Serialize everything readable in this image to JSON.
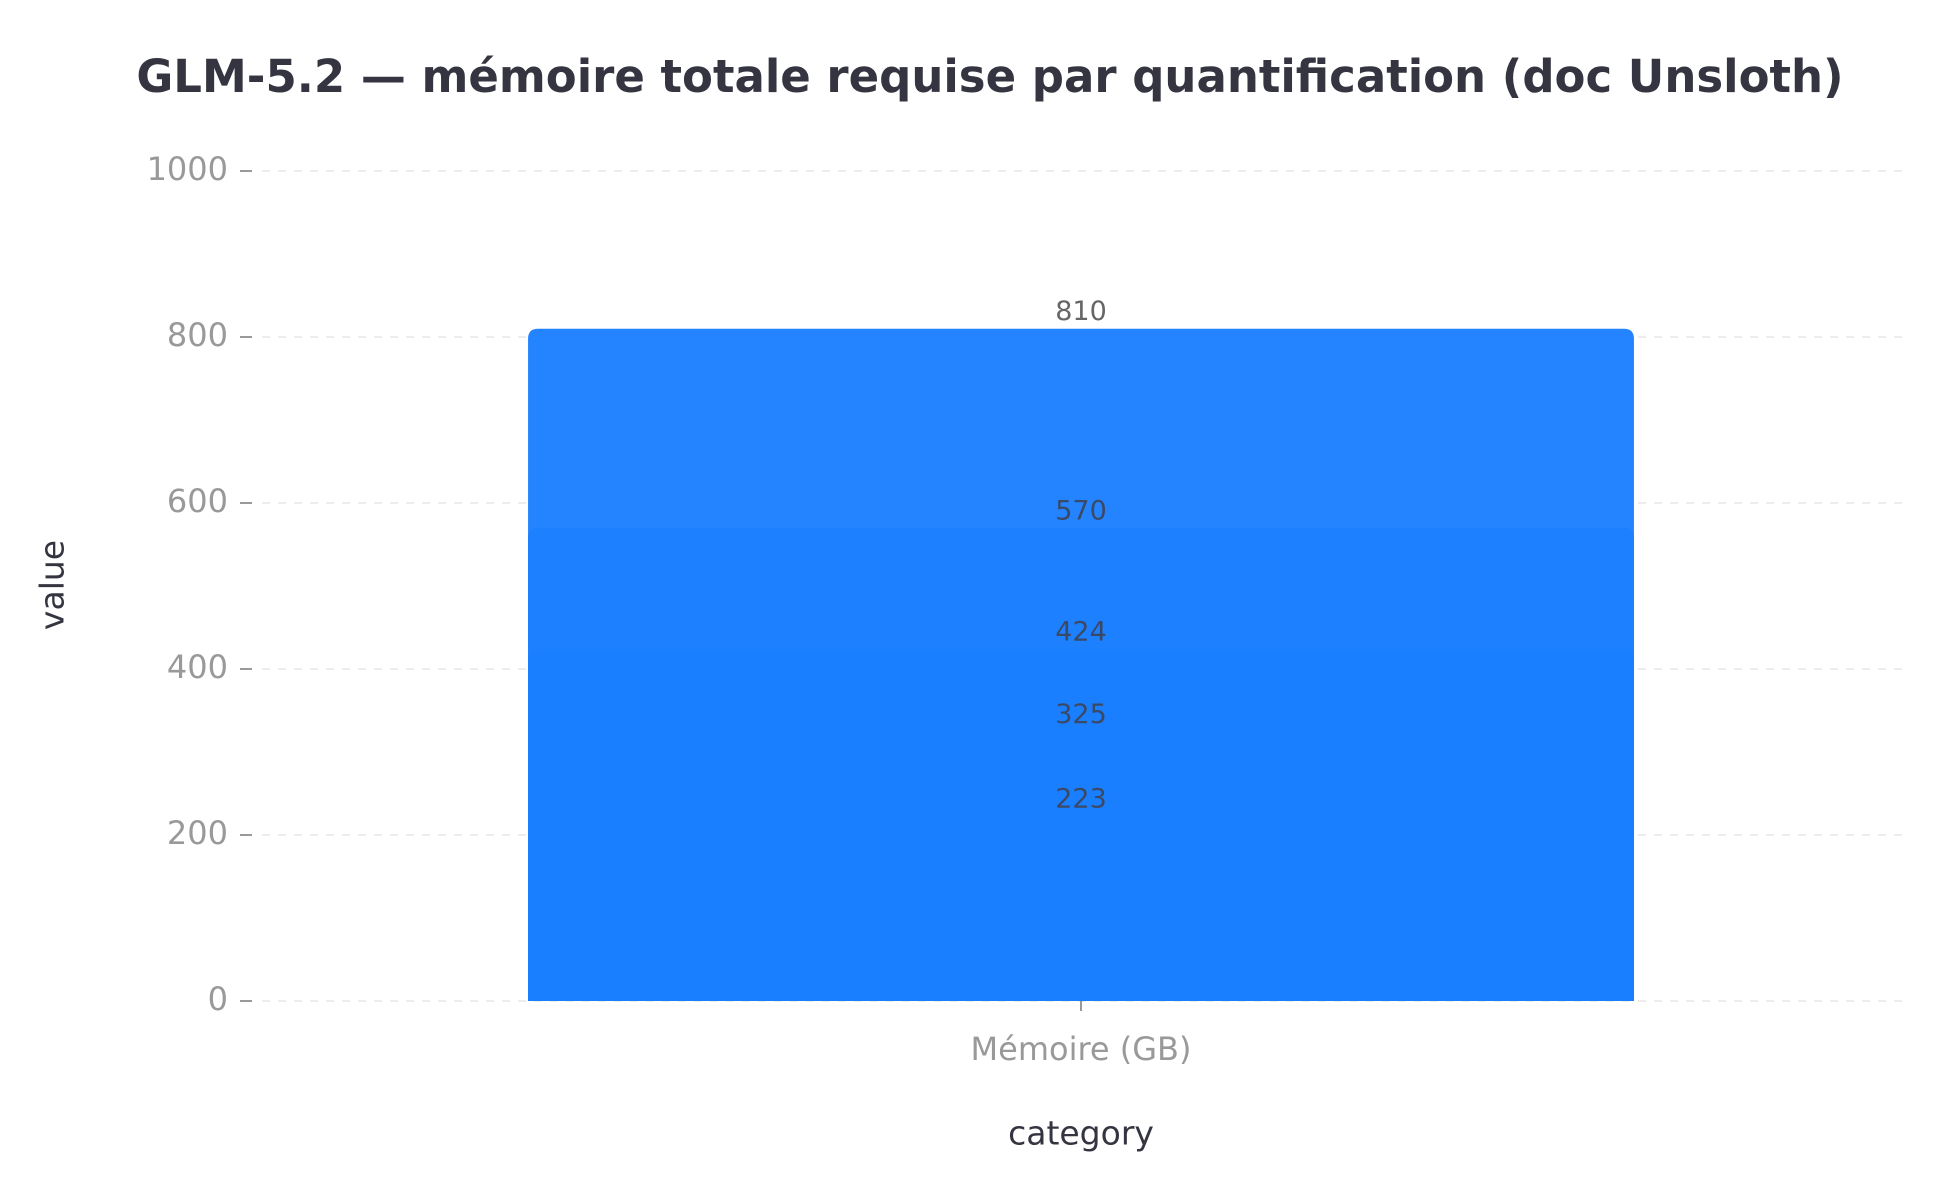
{
  "chart_data": {
    "type": "bar",
    "title": "GLM-5.2 — mémoire totale requise par quantification (doc Unsloth)",
    "x_label": "category",
    "y_label": "value",
    "categories": [
      "Mémoire (GB)"
    ],
    "series": [
      {
        "color": "#2484ff",
        "values": [
          810
        ]
      },
      {
        "color": "#1d80ff",
        "values": [
          570
        ]
      },
      {
        "color": "#1a7fff",
        "values": [
          424
        ]
      },
      {
        "color": "#1a7fff",
        "values": [
          325
        ]
      },
      {
        "color": "#197fff",
        "values": [
          223
        ]
      }
    ],
    "ylim": [
      0,
      1000
    ],
    "yticks": [
      0,
      200,
      400,
      600,
      800,
      1000
    ],
    "grid": true
  }
}
